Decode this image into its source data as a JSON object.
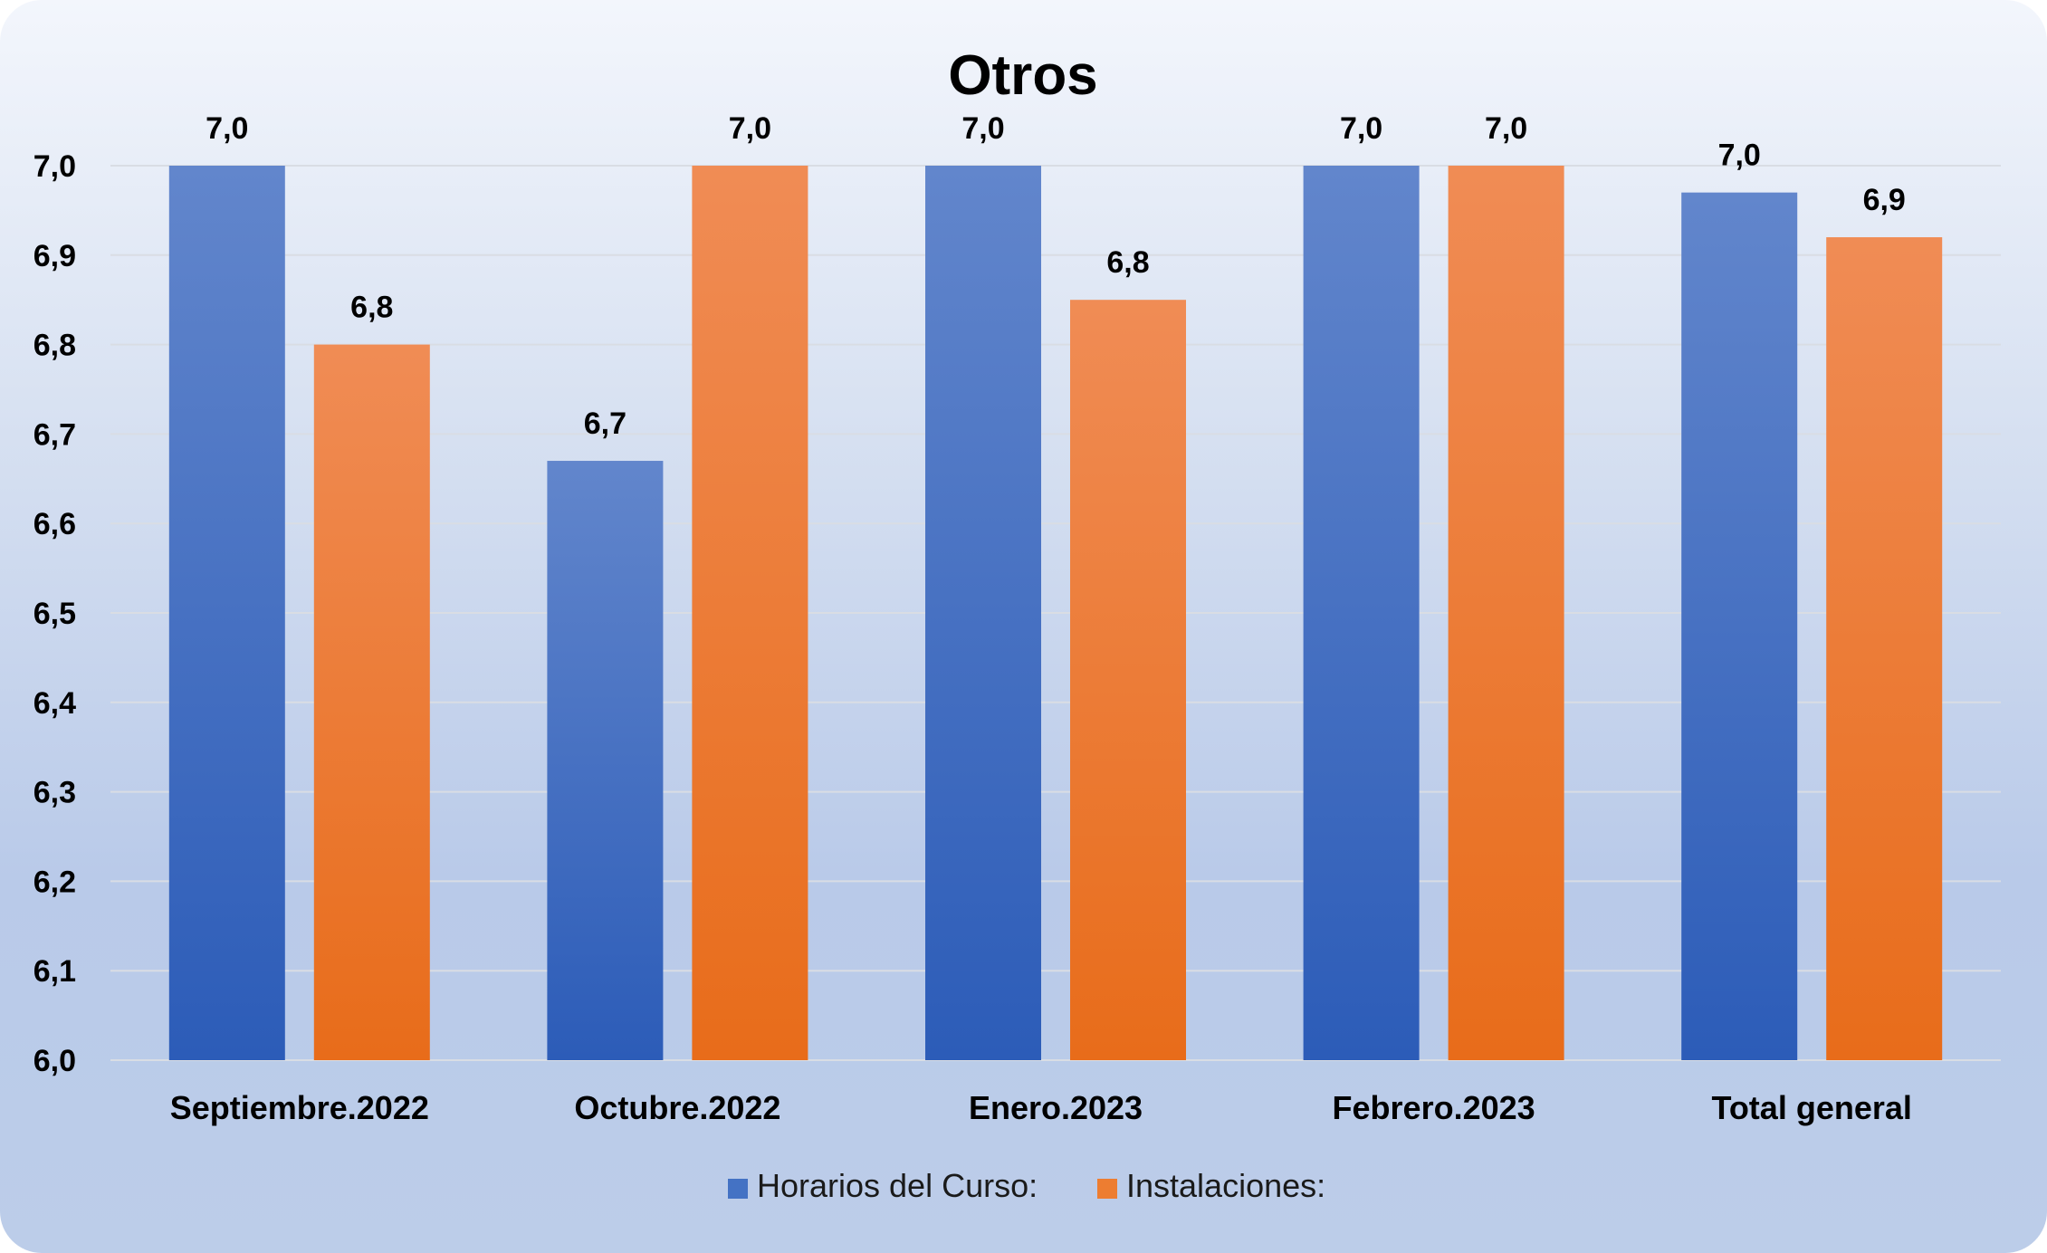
{
  "chart_data": {
    "type": "bar",
    "title": "Otros",
    "xlabel": "",
    "ylabel": "",
    "categories": [
      "Septiembre.2022",
      "Octubre.2022",
      "Enero.2023",
      "Febrero.2023",
      "Total general"
    ],
    "series": [
      {
        "name": "Horarios del Curso:",
        "color": "#4472c4",
        "values": [
          7.0,
          6.67,
          7.0,
          7.0,
          6.97
        ],
        "labels": [
          "7,0",
          "6,7",
          "7,0",
          "7,0",
          "7,0"
        ]
      },
      {
        "name": "Instalaciones:",
        "color": "#ed7d31",
        "values": [
          6.8,
          7.0,
          6.85,
          7.0,
          6.92
        ],
        "labels": [
          "6,8",
          "7,0",
          "6,8",
          "7,0",
          "6,9"
        ]
      }
    ],
    "ylim": [
      6.0,
      7.0
    ],
    "yticks": [
      "6,0",
      "6,1",
      "6,2",
      "6,3",
      "6,4",
      "6,5",
      "6,6",
      "6,7",
      "6,8",
      "6,9",
      "7,0"
    ],
    "grid": true,
    "legend_position": "bottom"
  }
}
